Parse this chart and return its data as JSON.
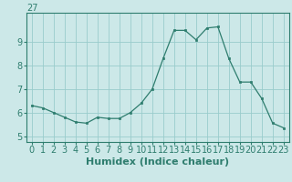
{
  "x": [
    0,
    1,
    2,
    3,
    4,
    5,
    6,
    7,
    8,
    9,
    10,
    11,
    12,
    13,
    14,
    15,
    16,
    17,
    18,
    19,
    20,
    21,
    22,
    23
  ],
  "y": [
    6.3,
    6.2,
    6.0,
    5.8,
    5.6,
    5.55,
    5.8,
    5.75,
    5.75,
    6.0,
    6.4,
    7.0,
    8.3,
    9.5,
    9.5,
    9.1,
    9.6,
    9.65,
    8.3,
    7.3,
    7.3,
    6.6,
    5.55,
    5.35
  ],
  "xlabel": "Humidex (Indice chaleur)",
  "line_color": "#2e7d6e",
  "marker_color": "#2e7d6e",
  "bg_color": "#cce8e8",
  "grid_color": "#99cccc",
  "xlim": [
    -0.5,
    23.5
  ],
  "ylim": [
    4.75,
    10.25
  ],
  "xticks": [
    0,
    1,
    2,
    3,
    4,
    5,
    6,
    7,
    8,
    9,
    10,
    11,
    12,
    13,
    14,
    15,
    16,
    17,
    18,
    19,
    20,
    21,
    22,
    23
  ],
  "yticks": [
    5,
    6,
    7,
    8,
    9
  ],
  "top_label": "27",
  "xlabel_fontsize": 8,
  "tick_fontsize": 7
}
